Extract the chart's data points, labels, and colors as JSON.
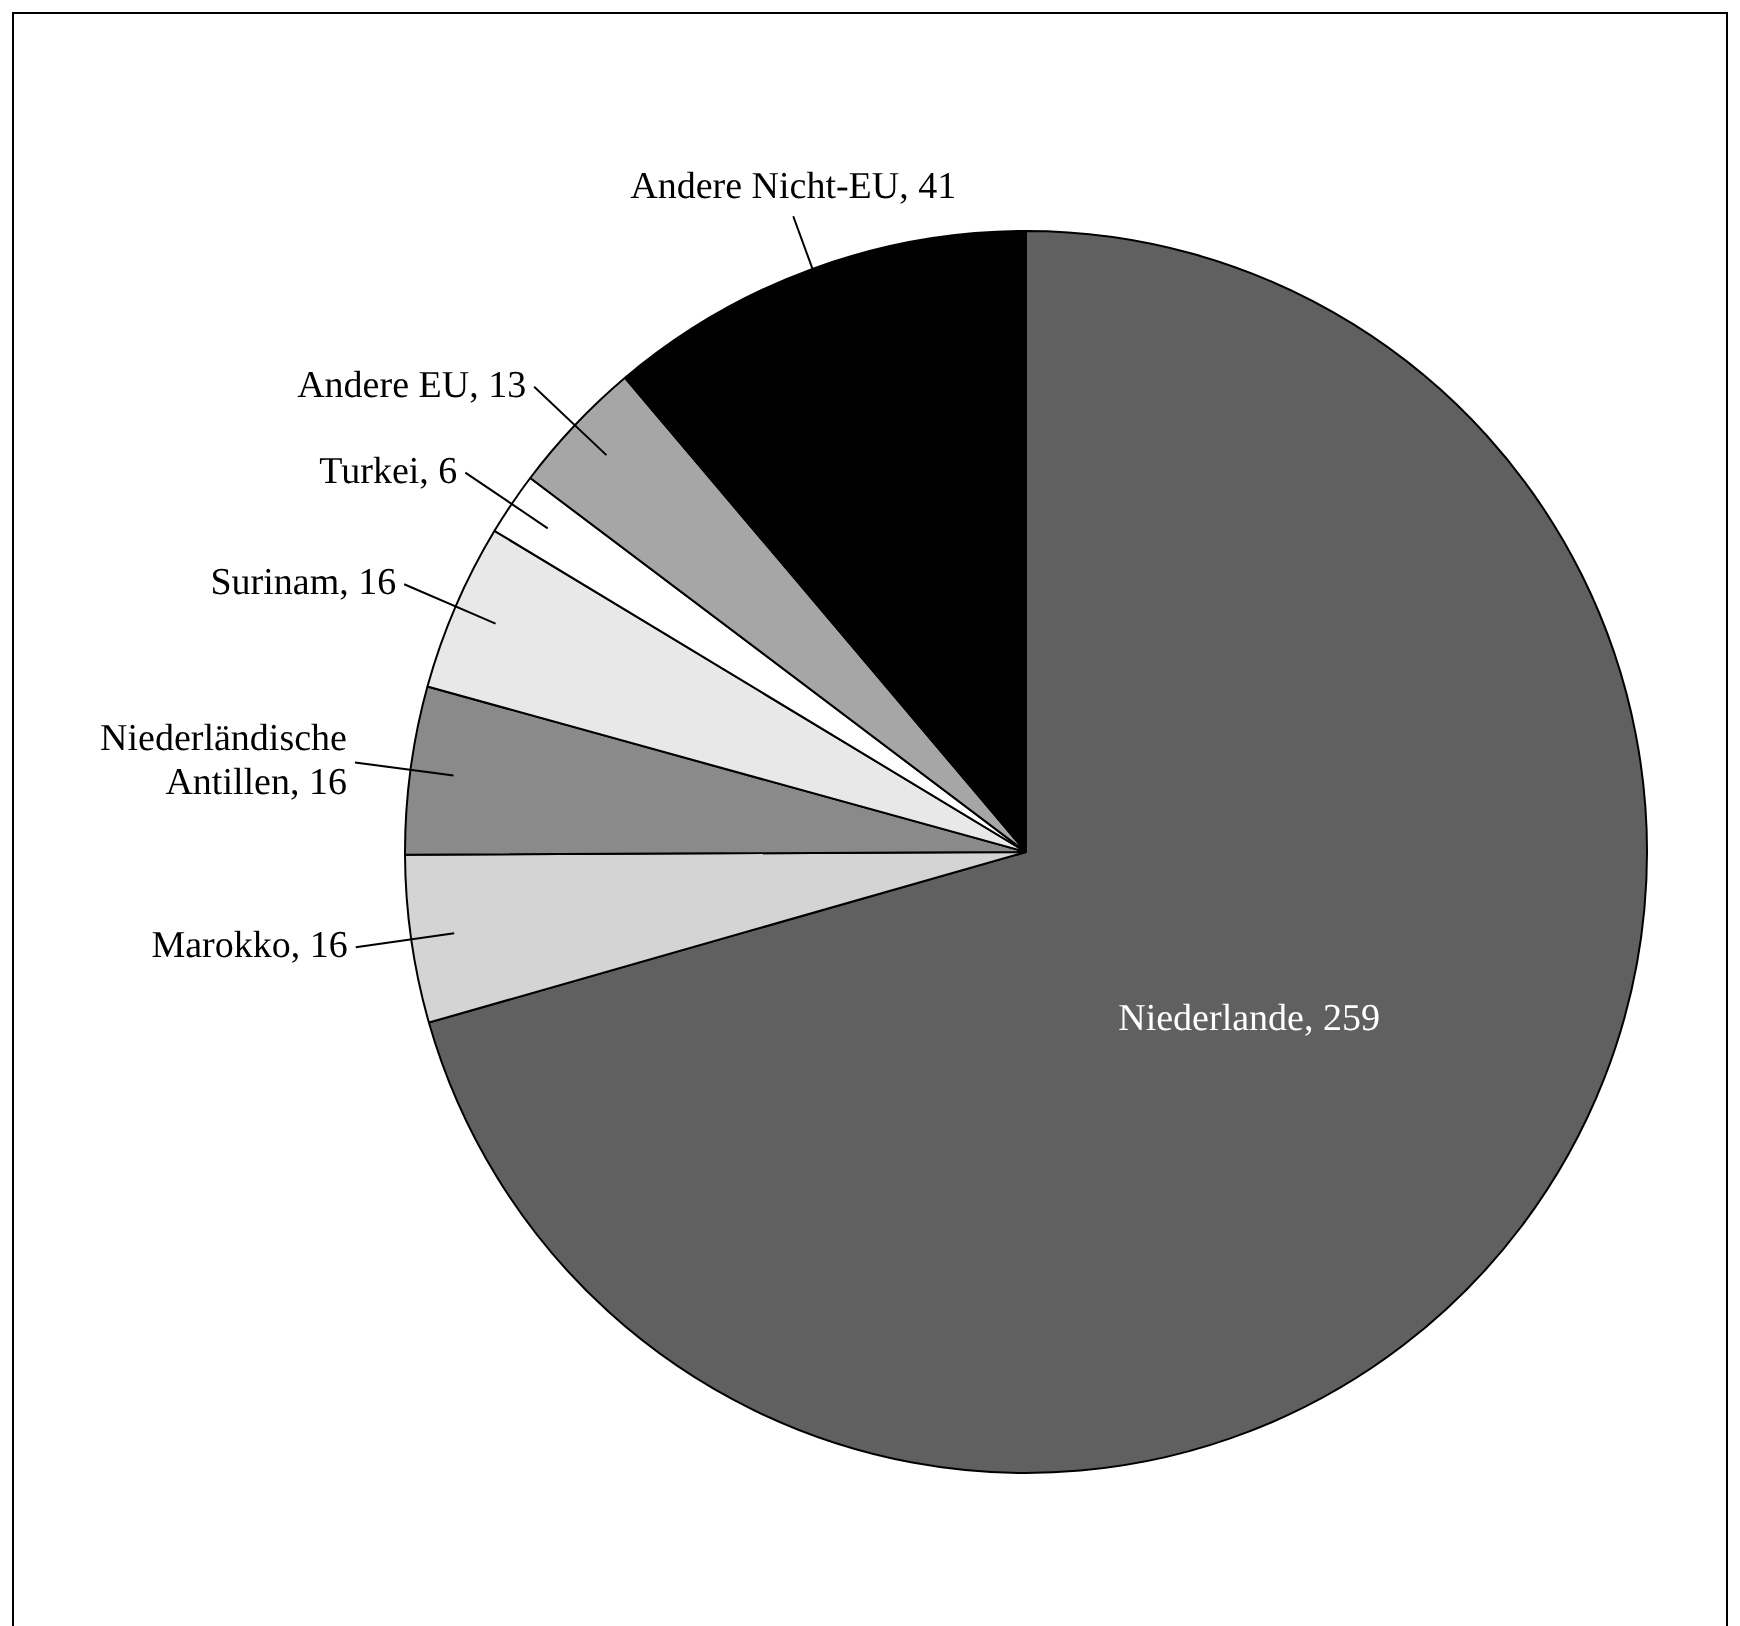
{
  "chart_data": {
    "type": "pie",
    "categories": [
      "Niederlande",
      "Marokko",
      "Niederländische Antillen",
      "Surinam",
      "Turkei",
      "Andere EU",
      "Andere Nicht-EU"
    ],
    "values": [
      259,
      16,
      16,
      16,
      6,
      13,
      41
    ],
    "value_labels": [
      ", 259",
      ", 16",
      ", 16",
      ", 16",
      ", 6",
      ", 13",
      ", 41"
    ],
    "colors": [
      "#606060",
      "#d4d4d4",
      "#8a8a8a",
      "#e8e8e8",
      "#ffffff",
      "#a6a6a6",
      "#000000"
    ],
    "legend": false
  }
}
